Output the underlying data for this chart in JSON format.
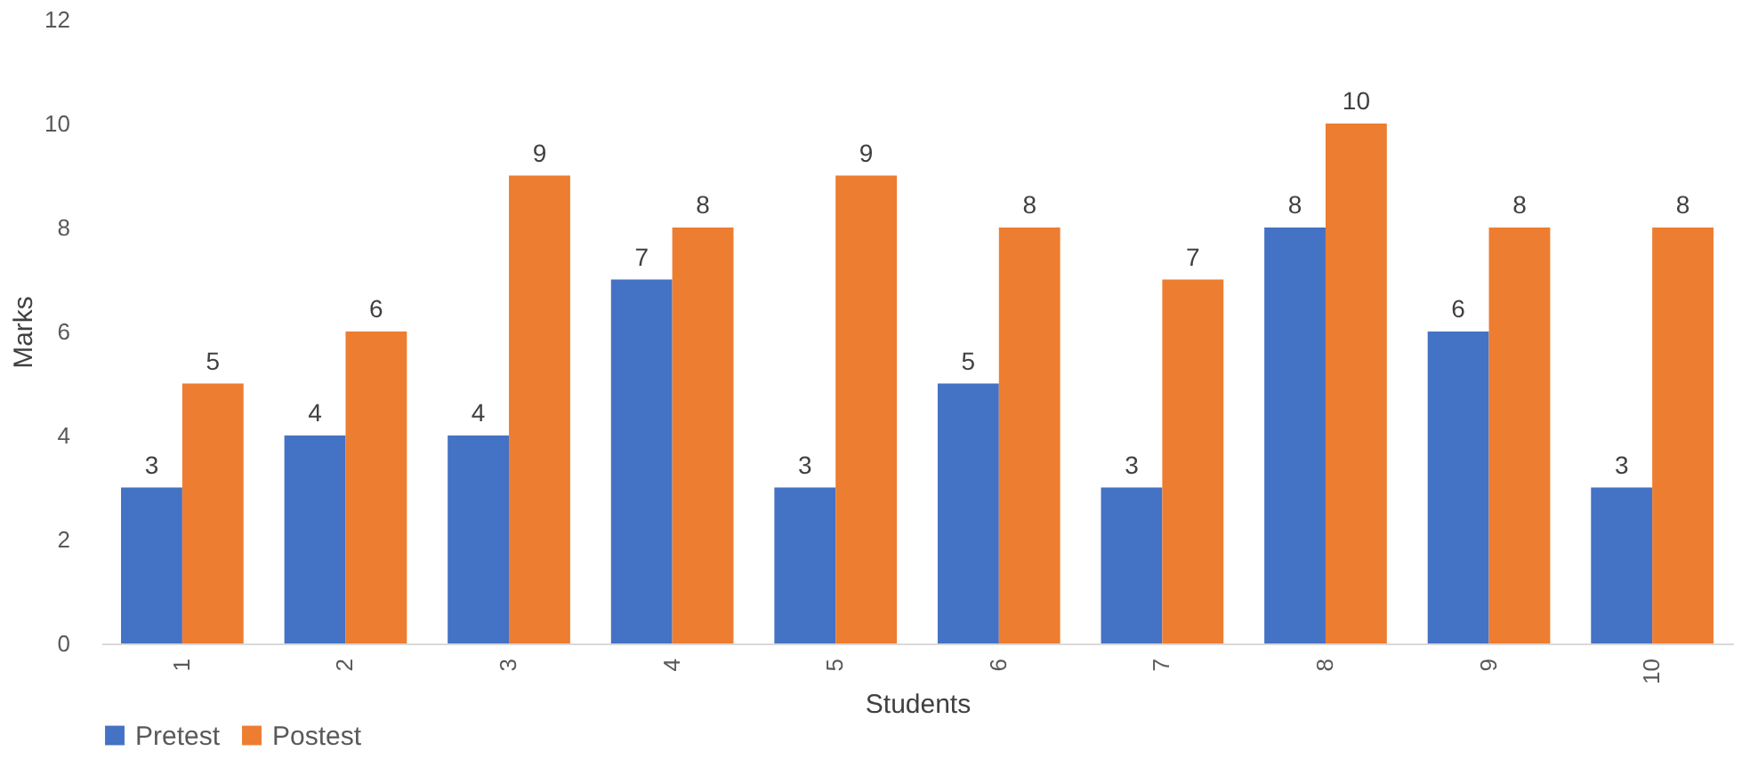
{
  "chart_data": {
    "type": "bar",
    "xlabel": "Students",
    "ylabel": "Marks",
    "categories": [
      "1",
      "2",
      "3",
      "4",
      "5",
      "6",
      "7",
      "8",
      "9",
      "10"
    ],
    "series": [
      {
        "name": "Pretest",
        "color": "#4472c4",
        "values": [
          3,
          4,
          4,
          7,
          3,
          5,
          3,
          8,
          6,
          3
        ]
      },
      {
        "name": "Postest",
        "color": "#ed7d31",
        "values": [
          5,
          6,
          9,
          8,
          9,
          8,
          7,
          10,
          8,
          8
        ]
      }
    ],
    "ylim": [
      0,
      12
    ],
    "yticks": [
      0,
      2,
      4,
      6,
      8,
      10,
      12
    ],
    "grid": false,
    "legend": "bottom",
    "data_labels": true
  }
}
